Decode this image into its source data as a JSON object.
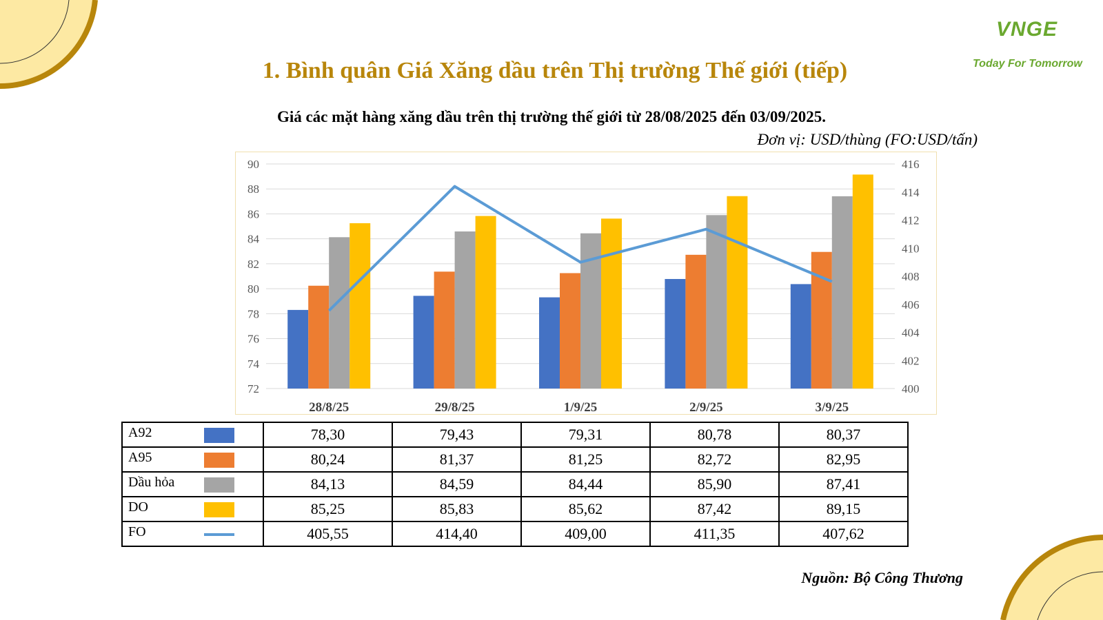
{
  "header": {
    "title": "1. Bình quân Giá Xăng dầu trên Thị trường Thế giới (tiếp)",
    "subtitle": "Giá các mặt hàng xăng dầu trên thị trường thế giới từ 28/08/2025 đến 03/09/2025.",
    "unit": "Đơn vị: USD/thùng (FO:USD/tấn)"
  },
  "logo": {
    "mark": "VNGE",
    "tagline": "Today For Tomorrow"
  },
  "source": "Nguồn: Bộ Công Thương",
  "colors": {
    "title": "#b8860b",
    "logo": "#6aa82f",
    "decor_gold": "#b8860b",
    "decor_fill": "#fde9a3"
  },
  "chart_data": {
    "type": "bar",
    "categories": [
      "28/8/25",
      "29/8/25",
      "1/9/25",
      "2/9/25",
      "3/9/25"
    ],
    "ylim": [
      72,
      90
    ],
    "yticks": [
      72,
      74,
      76,
      78,
      80,
      82,
      84,
      86,
      88,
      90
    ],
    "y2lim": [
      400,
      416
    ],
    "y2ticks": [
      400,
      402,
      404,
      406,
      408,
      410,
      412,
      414,
      416
    ],
    "grid": true,
    "series": [
      {
        "name": "A92",
        "type": "bar",
        "axis": "left",
        "color": "#4472c4",
        "values": [
          78.3,
          79.43,
          79.31,
          80.78,
          80.37
        ],
        "labels": [
          "78,30",
          "79,43",
          "79,31",
          "80,78",
          "80,37"
        ]
      },
      {
        "name": "A95",
        "type": "bar",
        "axis": "left",
        "color": "#ed7d31",
        "values": [
          80.24,
          81.37,
          81.25,
          82.72,
          82.95
        ],
        "labels": [
          "80,24",
          "81,37",
          "81,25",
          "82,72",
          "82,95"
        ]
      },
      {
        "name": "Dầu hỏa",
        "type": "bar",
        "axis": "left",
        "color": "#a5a5a5",
        "values": [
          84.13,
          84.59,
          84.44,
          85.9,
          87.41
        ],
        "labels": [
          "84,13",
          "84,59",
          "84,44",
          "85,90",
          "87,41"
        ]
      },
      {
        "name": "DO",
        "type": "bar",
        "axis": "left",
        "color": "#ffc000",
        "values": [
          85.25,
          85.83,
          85.62,
          87.42,
          89.15
        ],
        "labels": [
          "85,25",
          "85,83",
          "85,62",
          "87,42",
          "89,15"
        ]
      },
      {
        "name": "FO",
        "type": "line",
        "axis": "right",
        "color": "#5b9bd5",
        "values": [
          405.55,
          414.4,
          409.0,
          411.35,
          407.62
        ],
        "labels": [
          "405,55",
          "414,40",
          "409,00",
          "411,35",
          "407,62"
        ]
      }
    ]
  }
}
